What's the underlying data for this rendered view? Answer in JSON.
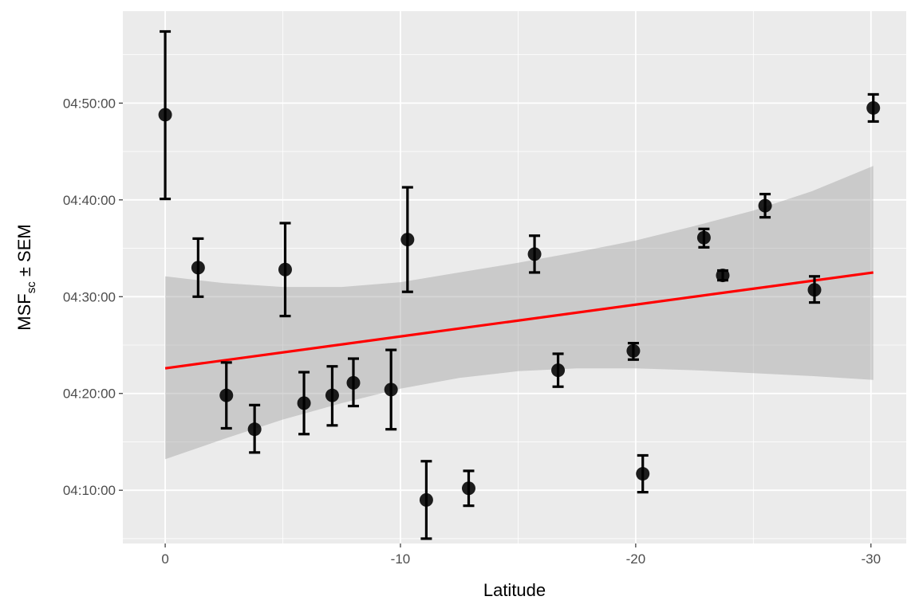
{
  "chart_data": {
    "type": "scatter",
    "title": "",
    "xlabel": "Latitude",
    "ylabel": {
      "main": "MSF",
      "subscript": "sc",
      "suffix": " ± SEM"
    },
    "xlim": [
      1.8,
      -31.5
    ],
    "x_ticks": [
      {
        "value": 0,
        "label": "0"
      },
      {
        "value": -10,
        "label": "-10"
      },
      {
        "value": -20,
        "label": "-20"
      },
      {
        "value": -30,
        "label": "-30"
      }
    ],
    "ylim_minutes": [
      4.5,
      59.5
    ],
    "y_ticks": [
      {
        "value": 10,
        "label": "04:10:00"
      },
      {
        "value": 20,
        "label": "04:20:00"
      },
      {
        "value": 30,
        "label": "04:30:00"
      },
      {
        "value": 40,
        "label": "04:40:00"
      },
      {
        "value": 50,
        "label": "04:50:00"
      }
    ],
    "y_unit_note": "y values are minutes after 04:00:00",
    "grid": true,
    "colors": {
      "panel": "#ebebeb",
      "grid": "#ffffff",
      "points": "#000000",
      "fit": "#ff0000",
      "ribbon": "#bfbfbf"
    },
    "points": [
      {
        "x": 0.0,
        "y": 48.8,
        "ymin": 40.1,
        "ymax": 57.4
      },
      {
        "x": -1.4,
        "y": 33.0,
        "ymin": 30.0,
        "ymax": 36.0
      },
      {
        "x": -2.6,
        "y": 19.8,
        "ymin": 16.4,
        "ymax": 23.2
      },
      {
        "x": -3.8,
        "y": 16.3,
        "ymin": 13.9,
        "ymax": 18.8
      },
      {
        "x": -5.1,
        "y": 32.8,
        "ymin": 28.0,
        "ymax": 37.6
      },
      {
        "x": -5.9,
        "y": 19.0,
        "ymin": 15.8,
        "ymax": 22.2
      },
      {
        "x": -7.1,
        "y": 19.8,
        "ymin": 16.7,
        "ymax": 22.8
      },
      {
        "x": -8.0,
        "y": 21.1,
        "ymin": 18.7,
        "ymax": 23.6
      },
      {
        "x": -9.6,
        "y": 20.4,
        "ymin": 16.3,
        "ymax": 24.5
      },
      {
        "x": -10.3,
        "y": 35.9,
        "ymin": 30.5,
        "ymax": 41.3
      },
      {
        "x": -11.1,
        "y": 9.0,
        "ymin": 5.0,
        "ymax": 13.0
      },
      {
        "x": -12.9,
        "y": 10.2,
        "ymin": 8.4,
        "ymax": 12.0
      },
      {
        "x": -15.7,
        "y": 34.4,
        "ymin": 32.5,
        "ymax": 36.3
      },
      {
        "x": -16.7,
        "y": 22.4,
        "ymin": 20.7,
        "ymax": 24.1
      },
      {
        "x": -19.9,
        "y": 24.4,
        "ymin": 23.5,
        "ymax": 25.2
      },
      {
        "x": -20.3,
        "y": 11.7,
        "ymin": 9.8,
        "ymax": 13.6
      },
      {
        "x": -22.9,
        "y": 36.1,
        "ymin": 35.1,
        "ymax": 37.0
      },
      {
        "x": -23.7,
        "y": 32.2,
        "ymin": 31.7,
        "ymax": 32.7
      },
      {
        "x": -25.5,
        "y": 39.4,
        "ymin": 38.2,
        "ymax": 40.6
      },
      {
        "x": -27.6,
        "y": 30.7,
        "ymin": 29.4,
        "ymax": 32.1
      },
      {
        "x": -30.1,
        "y": 49.5,
        "ymin": 48.1,
        "ymax": 50.9
      }
    ],
    "fit_line": {
      "x": [
        0.0,
        -30.1
      ],
      "y": [
        22.6,
        32.5
      ]
    },
    "confidence_band": [
      {
        "x": 0.0,
        "lower": 13.2,
        "upper": 32.1
      },
      {
        "x": -2.5,
        "lower": 15.3,
        "upper": 31.4
      },
      {
        "x": -5.0,
        "lower": 17.3,
        "upper": 31.0
      },
      {
        "x": -7.5,
        "lower": 19.0,
        "upper": 31.0
      },
      {
        "x": -10.0,
        "lower": 20.5,
        "upper": 31.5
      },
      {
        "x": -12.5,
        "lower": 21.6,
        "upper": 32.5
      },
      {
        "x": -15.0,
        "lower": 22.3,
        "upper": 33.5
      },
      {
        "x": -17.5,
        "lower": 22.6,
        "upper": 34.6
      },
      {
        "x": -20.0,
        "lower": 22.6,
        "upper": 35.8
      },
      {
        "x": -22.5,
        "lower": 22.4,
        "upper": 37.3
      },
      {
        "x": -25.0,
        "lower": 22.1,
        "upper": 38.9
      },
      {
        "x": -27.5,
        "lower": 21.8,
        "upper": 40.9
      },
      {
        "x": -30.1,
        "lower": 21.4,
        "upper": 43.5
      }
    ]
  }
}
